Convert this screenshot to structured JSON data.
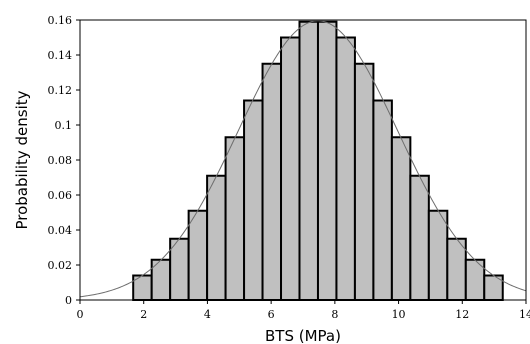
{
  "chart_data": {
    "type": "bar",
    "title": "",
    "xlabel": "BTS (MPa)",
    "ylabel": "Probability density",
    "xlim": [
      0,
      14
    ],
    "ylim": [
      0,
      0.16
    ],
    "xticks": [
      "0",
      "2",
      "4",
      "6",
      "8",
      "10",
      "12",
      "14"
    ],
    "yticks": [
      "0",
      "0.02",
      "0.04",
      "0.06",
      "0.08",
      "0.1",
      "0.12",
      "0.14",
      "0.16"
    ],
    "grid": false,
    "legend": "none",
    "bins": [
      {
        "x0": 1.67,
        "x1": 2.25,
        "value": 0.014
      },
      {
        "x0": 2.25,
        "x1": 2.83,
        "value": 0.023
      },
      {
        "x0": 2.83,
        "x1": 3.41,
        "value": 0.035
      },
      {
        "x0": 3.41,
        "x1": 3.99,
        "value": 0.051
      },
      {
        "x0": 3.99,
        "x1": 4.57,
        "value": 0.071
      },
      {
        "x0": 4.57,
        "x1": 5.15,
        "value": 0.093
      },
      {
        "x0": 5.15,
        "x1": 5.73,
        "value": 0.114
      },
      {
        "x0": 5.73,
        "x1": 6.31,
        "value": 0.135
      },
      {
        "x0": 6.31,
        "x1": 6.89,
        "value": 0.15
      },
      {
        "x0": 6.89,
        "x1": 7.47,
        "value": 0.159
      },
      {
        "x0": 7.47,
        "x1": 8.05,
        "value": 0.159
      },
      {
        "x0": 8.05,
        "x1": 8.63,
        "value": 0.15
      },
      {
        "x0": 8.63,
        "x1": 9.21,
        "value": 0.135
      },
      {
        "x0": 9.21,
        "x1": 9.79,
        "value": 0.114
      },
      {
        "x0": 9.79,
        "x1": 10.37,
        "value": 0.093
      },
      {
        "x0": 10.37,
        "x1": 10.95,
        "value": 0.071
      },
      {
        "x0": 10.95,
        "x1": 11.53,
        "value": 0.051
      },
      {
        "x0": 11.53,
        "x1": 12.11,
        "value": 0.035
      },
      {
        "x0": 12.11,
        "x1": 12.69,
        "value": 0.023
      },
      {
        "x0": 12.69,
        "x1": 13.27,
        "value": 0.014
      }
    ],
    "curve": {
      "mean": 7.47,
      "std": 2.5
    },
    "colors": {
      "bar_fill": "#c0c0c0",
      "bar_stroke": "#000000",
      "curve": "#6e6e6e",
      "axis": "#000000"
    }
  }
}
